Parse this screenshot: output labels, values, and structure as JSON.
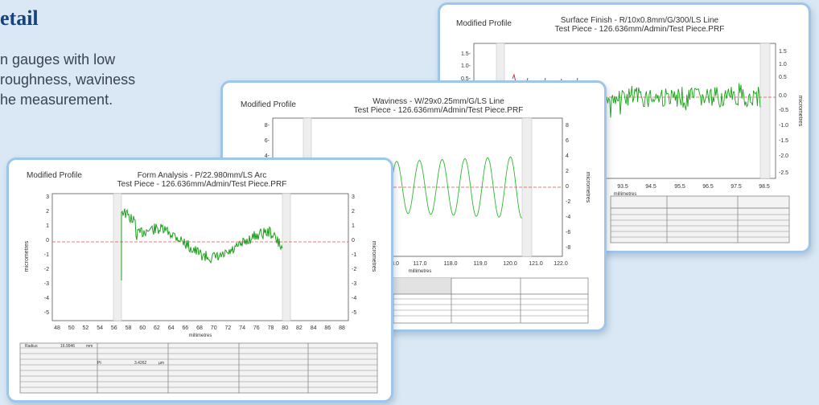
{
  "intro": {
    "heading": "etail",
    "lines": [
      "n gauges with low",
      "roughness, waviness",
      "he measurement."
    ]
  },
  "cards": {
    "surface": {
      "label": "Modified Profile",
      "title1": "Surface Finish - R/10x0.8mm/G/300/LS Line",
      "title2": "Test Piece - 126.636mm/Admin/Test Piece.PRF",
      "y_ticks_left": [
        "1.5-",
        "1.0-",
        "0.5-"
      ],
      "y_ticks_right": [
        "1.5",
        "1.0",
        "0.5",
        "0.0",
        "-0.5",
        "-1.0",
        "-1.5",
        "-2.0",
        "-2.5"
      ],
      "x_ticks": [
        "93.5",
        "94.5",
        "95.5",
        "96.5",
        "97.5",
        "98.5"
      ],
      "xlabel": "millimetres",
      "ylabel": "micrometres"
    },
    "waviness": {
      "label": "Modified Profile",
      "title1": "Waviness - W/29x0.25mm/G/LS Line",
      "title2": "Test Piece - 126.636mm/Admin/Test Piece.PRF",
      "y_ticks_left": [
        "8-",
        "6-",
        "4-"
      ],
      "y_ticks_right": [
        "8",
        "6",
        "4",
        "2",
        "0",
        "-2",
        "-4",
        "-6",
        "-8"
      ],
      "x_ticks": [
        "8.0",
        "117.0",
        "118.0",
        "119.0",
        "120.0",
        "121.0",
        "122.0"
      ],
      "xlabel": "millimetres",
      "ylabel": "micrometres"
    },
    "form": {
      "label": "Modified Profile",
      "title1": "Form Analysis - P/22.980mm/LS Arc",
      "title2": "Test Piece - 126.636mm/Admin/Test Piece.PRF",
      "y_ticks": [
        "3",
        "2",
        "1",
        "0",
        "-1",
        "-2",
        "-3",
        "-4",
        "-5"
      ],
      "x_ticks": [
        "48",
        "50",
        "52",
        "54",
        "56",
        "58",
        "60",
        "62",
        "64",
        "66",
        "68",
        "70",
        "72",
        "74",
        "76",
        "78",
        "80",
        "82",
        "84",
        "86",
        "88"
      ],
      "xlabel": "millimetres",
      "ylabel": "micrometres",
      "table": {
        "radius_label": "Radius",
        "radius_value": "16.9946",
        "radius_unit": "mm",
        "pt_label": "Pt",
        "pt_value": "3.4262",
        "pt_unit": "µm"
      }
    }
  }
}
